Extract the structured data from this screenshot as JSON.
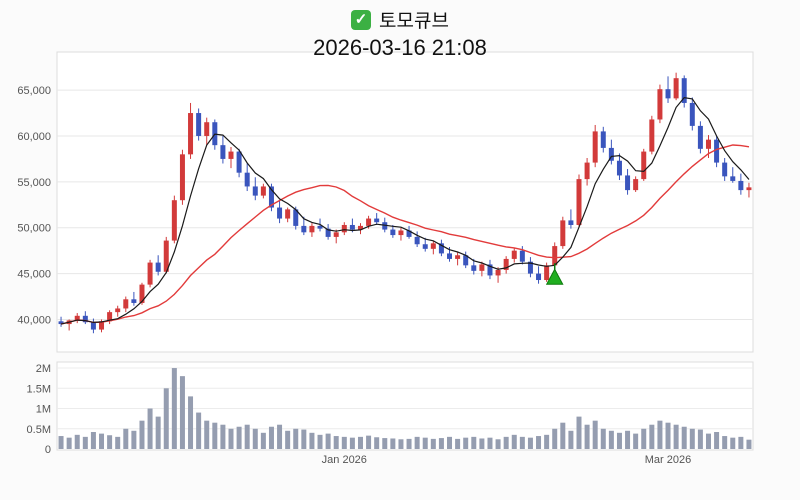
{
  "header": {
    "check_icon": "✓",
    "title": "토모큐브",
    "timestamp": "2026-03-16 21:08"
  },
  "chart_data": {
    "type": "candlestick",
    "title": "토모큐브",
    "subtitle": "2026-03-16 21:08",
    "legend_position": "none",
    "grid": true,
    "up_color": "#d23a3a",
    "down_color": "#3a55bd",
    "volume_color": "#959db0",
    "ma_short": {
      "window": 5,
      "color": "#1a1a1a"
    },
    "ma_long": {
      "window": 20,
      "color": "#e23b3b"
    },
    "y_axis": {
      "min": 37000,
      "max": 68500,
      "ticks": [
        {
          "value": 40000,
          "label": "40,000"
        },
        {
          "value": 45000,
          "label": "45,000"
        },
        {
          "value": 50000,
          "label": "50,000"
        },
        {
          "value": 55000,
          "label": "55,000"
        },
        {
          "value": 60000,
          "label": "60,000"
        },
        {
          "value": 65000,
          "label": "65,000"
        }
      ]
    },
    "volume_axis": {
      "max": 2100000,
      "ticks": [
        {
          "value": 0,
          "label": "0"
        },
        {
          "value": 500000,
          "label": "0.5M"
        },
        {
          "value": 1000000,
          "label": "1M"
        },
        {
          "value": 1500000,
          "label": "1.5M"
        },
        {
          "value": 2000000,
          "label": "2M"
        }
      ]
    },
    "x_labels": [
      {
        "index": 35,
        "label": "Jan 2026"
      },
      {
        "index": 75,
        "label": "Mar 2026"
      }
    ],
    "marker": {
      "index": 61,
      "price": 44600,
      "type": "buy-triangle",
      "color": "#1fae1f",
      "stroke": "#0c7a0c"
    },
    "candles_format": [
      "open",
      "high",
      "low",
      "close",
      "volume"
    ],
    "candles": [
      [
        39800,
        40300,
        39200,
        39500,
        320000
      ],
      [
        39500,
        40000,
        38800,
        39900,
        280000
      ],
      [
        39900,
        40700,
        39600,
        40400,
        350000
      ],
      [
        40400,
        40900,
        39500,
        39700,
        300000
      ],
      [
        39700,
        40100,
        38500,
        38900,
        420000
      ],
      [
        38900,
        40000,
        38600,
        39800,
        380000
      ],
      [
        39800,
        41000,
        39500,
        40800,
        340000
      ],
      [
        40800,
        41500,
        40300,
        41200,
        300000
      ],
      [
        41200,
        42500,
        40800,
        42200,
        500000
      ],
      [
        42200,
        43000,
        41500,
        41800,
        450000
      ],
      [
        41800,
        44000,
        41600,
        43800,
        700000
      ],
      [
        43800,
        46500,
        43500,
        46200,
        1000000
      ],
      [
        46200,
        47000,
        44800,
        45200,
        800000
      ],
      [
        45200,
        49000,
        45000,
        48600,
        1500000
      ],
      [
        48600,
        53500,
        48300,
        53000,
        2000000
      ],
      [
        53000,
        58500,
        52500,
        58000,
        1800000
      ],
      [
        58000,
        63600,
        57500,
        62500,
        1300000
      ],
      [
        62500,
        63000,
        59500,
        60000,
        900000
      ],
      [
        60000,
        62000,
        59000,
        61500,
        700000
      ],
      [
        61500,
        61800,
        58500,
        59000,
        650000
      ],
      [
        59000,
        60000,
        57000,
        57500,
        600000
      ],
      [
        57500,
        58800,
        56500,
        58300,
        500000
      ],
      [
        58300,
        58600,
        55500,
        56000,
        550000
      ],
      [
        56000,
        57000,
        54000,
        54500,
        600000
      ],
      [
        54500,
        55500,
        53000,
        53500,
        500000
      ],
      [
        53500,
        54800,
        53200,
        54500,
        400000
      ],
      [
        54500,
        54800,
        51800,
        52200,
        550000
      ],
      [
        52200,
        53000,
        50500,
        51000,
        600000
      ],
      [
        51000,
        52200,
        50600,
        52000,
        450000
      ],
      [
        52000,
        52300,
        49800,
        50200,
        500000
      ],
      [
        50200,
        51200,
        49200,
        49500,
        480000
      ],
      [
        49500,
        50500,
        49000,
        50200,
        400000
      ],
      [
        50200,
        51000,
        49600,
        49900,
        350000
      ],
      [
        49900,
        50400,
        48700,
        49000,
        380000
      ],
      [
        49000,
        49800,
        48300,
        49500,
        320000
      ],
      [
        49500,
        50600,
        49200,
        50300,
        300000
      ],
      [
        50300,
        51000,
        49500,
        49800,
        280000
      ],
      [
        49800,
        50500,
        49300,
        50200,
        300000
      ],
      [
        50200,
        51300,
        49900,
        51000,
        330000
      ],
      [
        51000,
        51600,
        50300,
        50600,
        290000
      ],
      [
        50600,
        51100,
        49500,
        49800,
        270000
      ],
      [
        49800,
        50300,
        48900,
        49200,
        260000
      ],
      [
        49200,
        50000,
        48600,
        49700,
        240000
      ],
      [
        49700,
        50200,
        48800,
        49000,
        250000
      ],
      [
        49000,
        49600,
        47900,
        48200,
        300000
      ],
      [
        48200,
        48900,
        47400,
        47700,
        280000
      ],
      [
        47700,
        48600,
        47100,
        48300,
        250000
      ],
      [
        48300,
        48700,
        46900,
        47200,
        270000
      ],
      [
        47200,
        47900,
        46300,
        46600,
        300000
      ],
      [
        46600,
        47300,
        45900,
        47000,
        250000
      ],
      [
        47000,
        47400,
        45600,
        45900,
        280000
      ],
      [
        45900,
        46600,
        44900,
        45300,
        300000
      ],
      [
        45300,
        46300,
        44700,
        46000,
        260000
      ],
      [
        46000,
        46500,
        44400,
        44800,
        280000
      ],
      [
        44800,
        45700,
        44000,
        45400,
        240000
      ],
      [
        45400,
        46900,
        45000,
        46600,
        300000
      ],
      [
        46600,
        47800,
        46200,
        47500,
        350000
      ],
      [
        47500,
        48000,
        46000,
        46300,
        300000
      ],
      [
        46300,
        46800,
        44600,
        45000,
        280000
      ],
      [
        45000,
        45800,
        43900,
        44300,
        320000
      ],
      [
        44300,
        46200,
        44100,
        45900,
        350000
      ],
      [
        45900,
        48400,
        45600,
        48000,
        500000
      ],
      [
        48000,
        51200,
        47700,
        50800,
        650000
      ],
      [
        50800,
        52000,
        49900,
        50300,
        450000
      ],
      [
        50300,
        55800,
        50100,
        55300,
        800000
      ],
      [
        55300,
        57600,
        54600,
        57100,
        600000
      ],
      [
        57100,
        61200,
        56600,
        60500,
        700000
      ],
      [
        60500,
        61000,
        58200,
        58700,
        500000
      ],
      [
        58700,
        59600,
        56900,
        57300,
        450000
      ],
      [
        57300,
        58100,
        55200,
        55700,
        400000
      ],
      [
        55700,
        56400,
        53600,
        54100,
        450000
      ],
      [
        54100,
        55600,
        53900,
        55300,
        380000
      ],
      [
        55300,
        58600,
        55100,
        58300,
        500000
      ],
      [
        58300,
        62200,
        58000,
        61800,
        600000
      ],
      [
        61800,
        65600,
        61400,
        65100,
        700000
      ],
      [
        65100,
        66500,
        63600,
        64100,
        650000
      ],
      [
        64100,
        66900,
        63900,
        66300,
        600000
      ],
      [
        66300,
        66600,
        63100,
        63600,
        550000
      ],
      [
        63600,
        64200,
        60600,
        61100,
        500000
      ],
      [
        61100,
        61600,
        58100,
        58600,
        480000
      ],
      [
        58600,
        60100,
        57600,
        59600,
        380000
      ],
      [
        59600,
        60000,
        56600,
        57100,
        420000
      ],
      [
        57100,
        57600,
        55100,
        55600,
        320000
      ],
      [
        55600,
        56600,
        54900,
        55100,
        280000
      ],
      [
        55100,
        55900,
        53600,
        54100,
        300000
      ],
      [
        54100,
        54900,
        53300,
        54400,
        230000
      ]
    ]
  }
}
